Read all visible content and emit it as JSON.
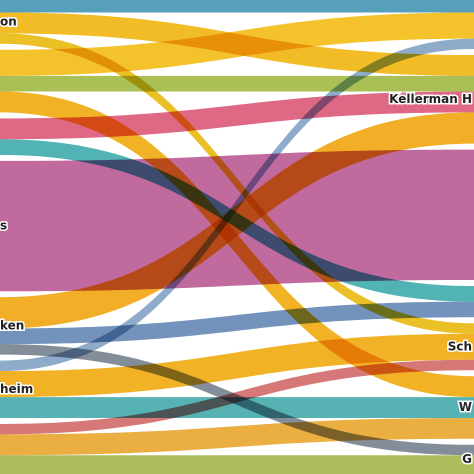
{
  "chart_data": {
    "type": "sankey",
    "sources": [
      "on",
      null,
      null,
      "s",
      "ken",
      "heim",
      null
    ],
    "targets": [
      null,
      "Kellerman H",
      null,
      null,
      "Sch",
      "W",
      "G"
    ],
    "flows": [
      {
        "source": 0,
        "target": 0,
        "value": 12,
        "color": "#3a8fb0"
      },
      {
        "source": 0,
        "target": 1,
        "value": 20,
        "color": "#f0b000"
      },
      {
        "source": 0,
        "target": 4,
        "value": 10,
        "color": "#e8b400"
      },
      {
        "source": 1,
        "target": 0,
        "value": 25,
        "color": "#f2b705"
      },
      {
        "source": 1,
        "target": 1,
        "value": 15,
        "color": "#9bb53a"
      },
      {
        "source": 1,
        "target": 5,
        "value": 20,
        "color": "#f0a500"
      },
      {
        "source": 2,
        "target": 1,
        "value": 20,
        "color": "#d94f70"
      },
      {
        "source": 2,
        "target": 3,
        "value": 15,
        "color": "#33a6a6"
      },
      {
        "source": 3,
        "target": 2,
        "value": 125,
        "color": "#b5508c"
      },
      {
        "source": 4,
        "target": 1,
        "value": 30,
        "color": "#f0a000"
      },
      {
        "source": 4,
        "target": 3,
        "value": 15,
        "color": "#5a7fb0"
      },
      {
        "source": 4,
        "target": 6,
        "value": 10,
        "color": "#6e7a8a"
      },
      {
        "source": 5,
        "target": 0,
        "value": 10,
        "color": "#7a9ec0"
      },
      {
        "source": 5,
        "target": 4,
        "value": 25,
        "color": "#f0a500"
      },
      {
        "source": 5,
        "target": 5,
        "value": 20,
        "color": "#3aa6a6"
      },
      {
        "source": 6,
        "target": 4,
        "value": 10,
        "color": "#d06060"
      },
      {
        "source": 6,
        "target": 5,
        "value": 20,
        "color": "#e8a020"
      },
      {
        "source": 6,
        "target": 6,
        "value": 18,
        "color": "#a0b040"
      }
    ]
  }
}
